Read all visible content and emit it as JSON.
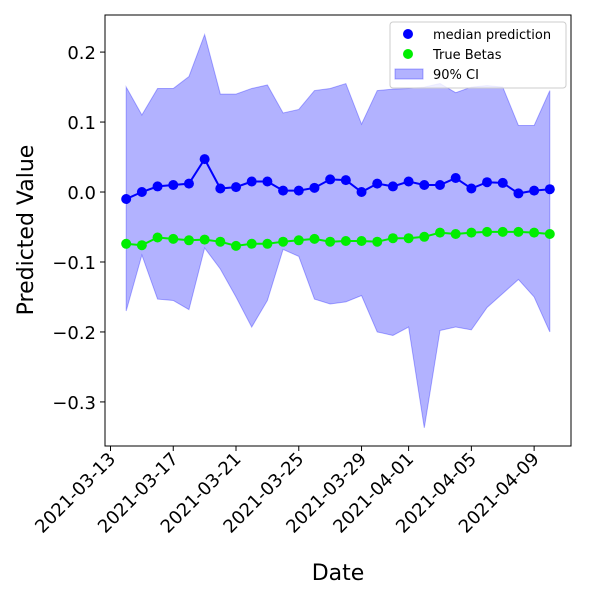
{
  "chart_data": {
    "type": "line",
    "xlabel": "Date",
    "ylabel": "Predicted Value",
    "x": [
      "2021-03-14",
      "2021-03-15",
      "2021-03-16",
      "2021-03-17",
      "2021-03-18",
      "2021-03-19",
      "2021-03-20",
      "2021-03-21",
      "2021-03-22",
      "2021-03-23",
      "2021-03-24",
      "2021-03-25",
      "2021-03-26",
      "2021-03-27",
      "2021-03-28",
      "2021-03-29",
      "2021-03-30",
      "2021-03-31",
      "2021-04-01",
      "2021-04-02",
      "2021-04-03",
      "2021-04-04",
      "2021-04-05",
      "2021-04-06",
      "2021-04-07",
      "2021-04-08",
      "2021-04-09",
      "2021-04-10"
    ],
    "series": [
      {
        "name": "median prediction",
        "color": "#0000ff",
        "values": [
          -0.01,
          0.0,
          0.008,
          0.01,
          0.012,
          0.047,
          0.005,
          0.007,
          0.015,
          0.015,
          0.002,
          0.002,
          0.006,
          0.018,
          0.017,
          0.0,
          0.012,
          0.008,
          0.015,
          0.01,
          0.01,
          0.02,
          0.005,
          0.014,
          0.013,
          -0.002,
          0.002,
          0.004
        ]
      },
      {
        "name": "True Betas",
        "color": "#00ee00",
        "values": [
          -0.074,
          -0.076,
          -0.065,
          -0.067,
          -0.069,
          -0.068,
          -0.071,
          -0.077,
          -0.074,
          -0.074,
          -0.071,
          -0.069,
          -0.067,
          -0.071,
          -0.07,
          -0.07,
          -0.071,
          -0.066,
          -0.066,
          -0.064,
          -0.058,
          -0.06,
          -0.058,
          -0.057,
          -0.057,
          -0.057,
          -0.058,
          -0.06
        ]
      }
    ],
    "bands": [
      {
        "name": "90% CI",
        "color": "#0000ff",
        "upper": [
          0.15,
          0.11,
          0.148,
          0.148,
          0.165,
          0.225,
          0.14,
          0.14,
          0.148,
          0.153,
          0.113,
          0.118,
          0.145,
          0.148,
          0.155,
          0.097,
          0.145,
          0.147,
          0.148,
          0.15,
          0.155,
          0.142,
          0.15,
          0.152,
          0.15,
          0.095,
          0.095,
          0.145
        ],
        "lower": [
          -0.17,
          -0.09,
          -0.153,
          -0.155,
          -0.168,
          -0.08,
          -0.11,
          -0.15,
          -0.193,
          -0.155,
          -0.082,
          -0.092,
          -0.153,
          -0.16,
          -0.157,
          -0.148,
          -0.2,
          -0.205,
          -0.193,
          -0.337,
          -0.198,
          -0.193,
          -0.197,
          -0.165,
          -0.145,
          -0.125,
          -0.15,
          -0.2
        ]
      }
    ],
    "xlim": [
      "2021-03-12T15:36:00Z",
      "2021-04-11T08:24:00Z"
    ],
    "xticks": [
      "2021-03-13",
      "2021-03-17",
      "2021-03-21",
      "2021-03-25",
      "2021-03-29",
      "2021-04-01",
      "2021-04-05",
      "2021-04-09"
    ],
    "ylim": [
      -0.363,
      0.253
    ],
    "yticks": [
      {
        "value": -0.3,
        "label": "−0.3"
      },
      {
        "value": -0.2,
        "label": "−0.2"
      },
      {
        "value": -0.1,
        "label": "−0.1"
      },
      {
        "value": 0,
        "label": "0.0"
      },
      0.1,
      0.2
    ],
    "legend": "upper right"
  }
}
